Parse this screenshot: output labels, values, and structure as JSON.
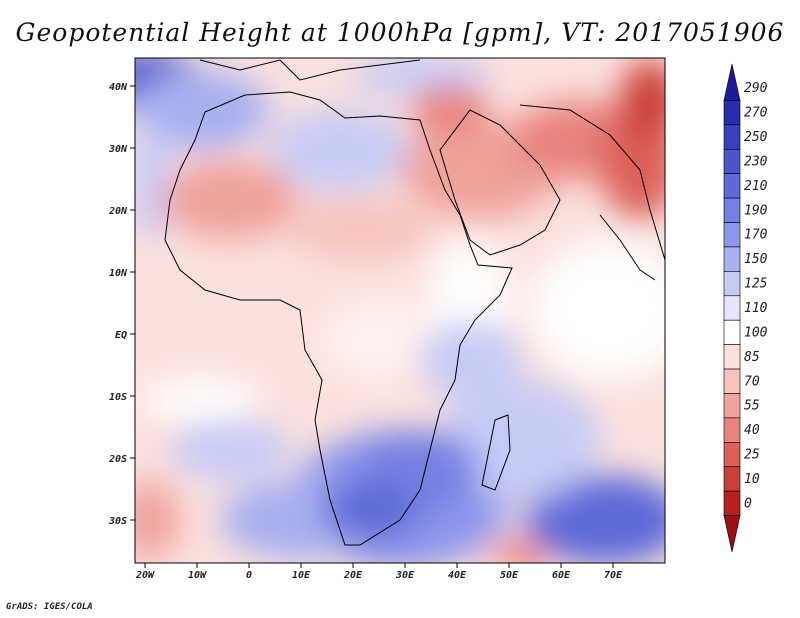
{
  "title": "Geopotential Height at 1000hPa [gpm], VT: 2017051906",
  "footer": "GrADS: IGES/COLA",
  "map": {
    "lat_ticks": [
      "40N",
      "30N",
      "20N",
      "10N",
      "EQ",
      "10S",
      "20S",
      "30S"
    ],
    "lon_ticks": [
      "20W",
      "10W",
      "0",
      "10E",
      "20E",
      "30E",
      "40E",
      "50E",
      "60E",
      "70E"
    ]
  },
  "colorbar": {
    "labels": [
      "290",
      "270",
      "250",
      "230",
      "210",
      "190",
      "170",
      "150",
      "125",
      "110",
      "100",
      "85",
      "70",
      "55",
      "40",
      "25",
      "10",
      "0"
    ],
    "colors": [
      "#1c1a9c",
      "#2a2cae",
      "#3a3fbe",
      "#4c54cc",
      "#5f6ad8",
      "#7680e2",
      "#8d96ea",
      "#a8b0f0",
      "#c6cbf6",
      "#e4e6fb",
      "#ffffff",
      "#fbe1de",
      "#f6c3bd",
      "#f0a39c",
      "#e8837d",
      "#dc6058",
      "#cc3f38",
      "#b81f1e",
      "#9e0f14"
    ]
  }
}
